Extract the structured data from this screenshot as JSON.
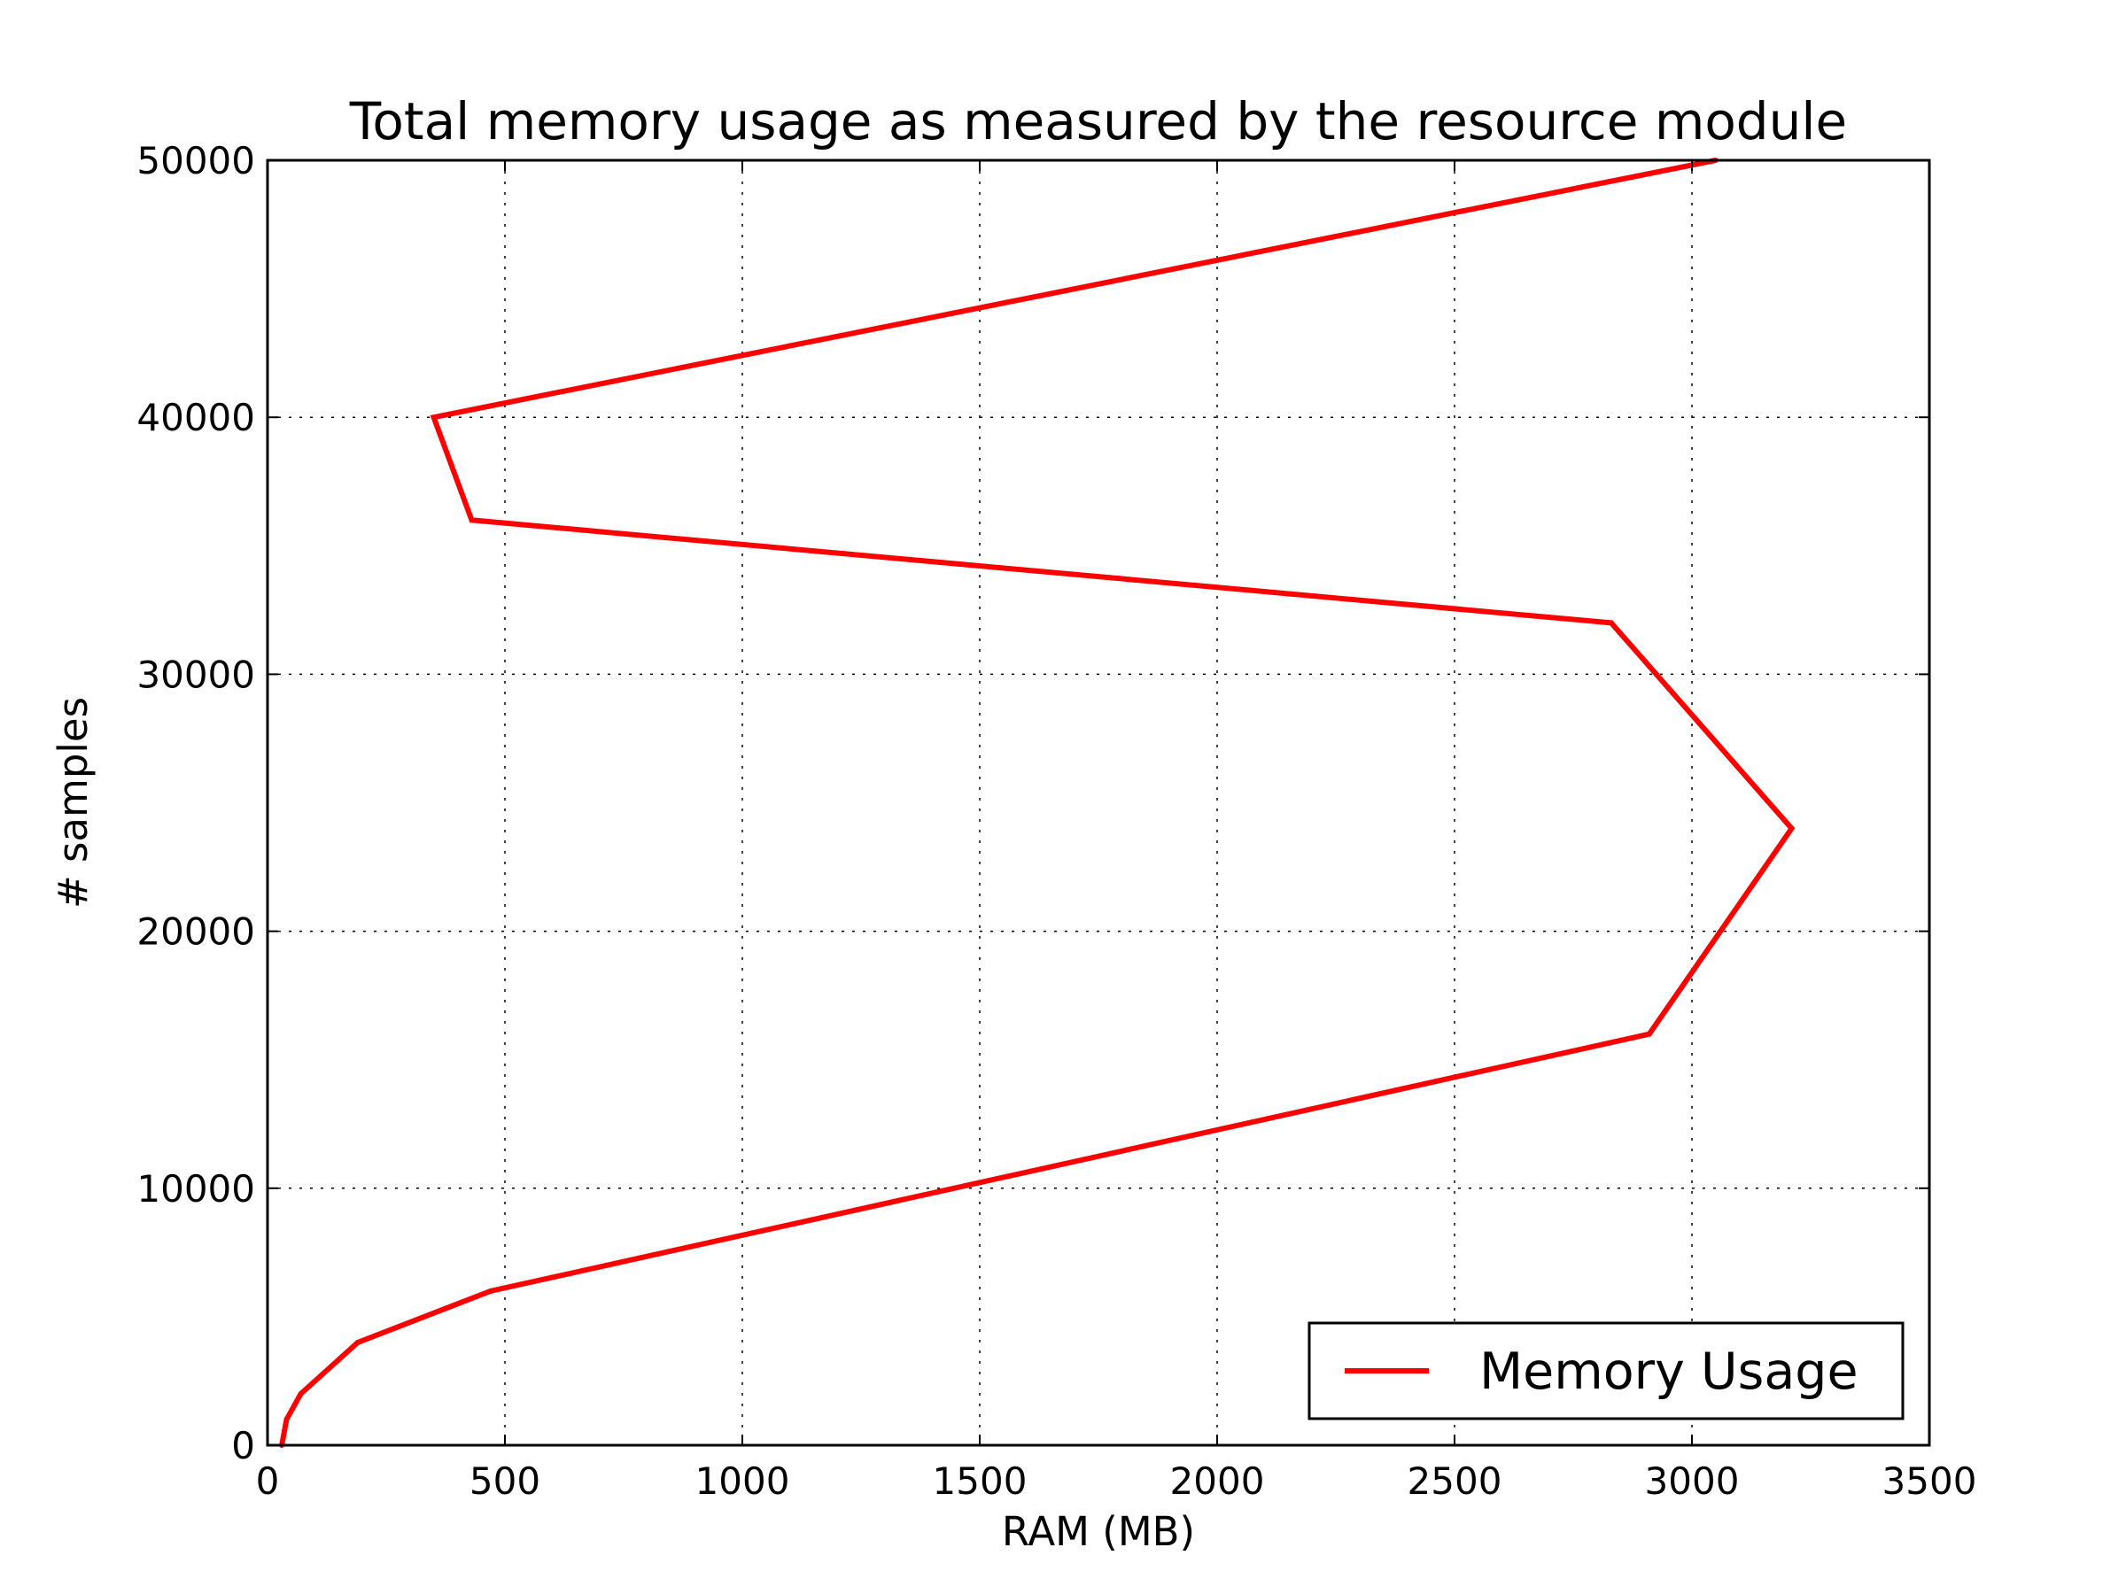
{
  "chart_data": {
    "type": "line",
    "title": "Total memory usage as measured by the resource module",
    "xlabel": "RAM (MB)",
    "ylabel": "# samples",
    "xlim": [
      0,
      3500
    ],
    "ylim": [
      0,
      50000
    ],
    "xticks": [
      0,
      500,
      1000,
      1500,
      2000,
      2500,
      3000,
      3500
    ],
    "yticks": [
      0,
      10000,
      20000,
      30000,
      40000,
      50000
    ],
    "grid": true,
    "legend_position": "lower-right",
    "series": [
      {
        "name": "Memory Usage",
        "color": "#ff0000",
        "x": [
          30,
          40,
          70,
          190,
          470,
          2910,
          3210,
          2830,
          430,
          350,
          3050
        ],
        "y": [
          0,
          1000,
          2000,
          4000,
          6000,
          16000,
          24000,
          32000,
          36000,
          40000,
          50000
        ]
      }
    ]
  }
}
